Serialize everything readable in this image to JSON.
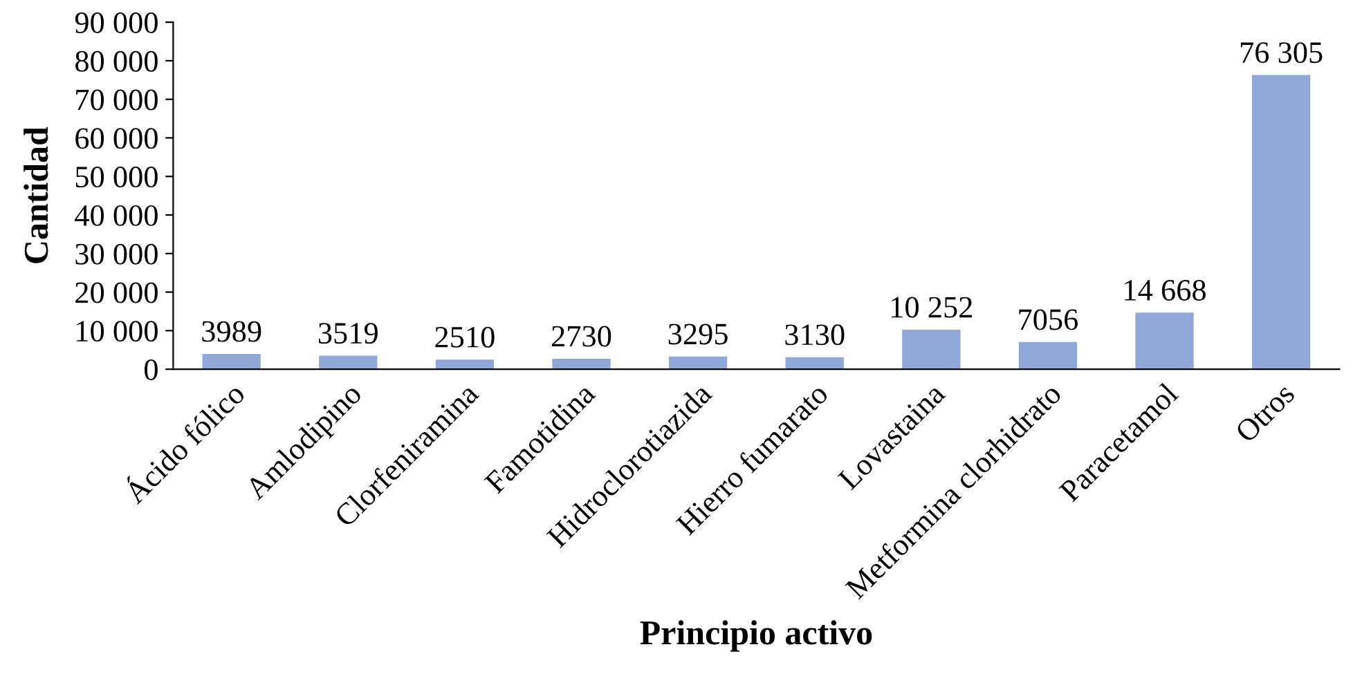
{
  "chart_data": {
    "type": "bar",
    "xlabel": "Principio activo",
    "ylabel": "Cantidad",
    "categories": [
      "Ácido fólico",
      "Amlodipino",
      "Clorfeniramina",
      "Famotidina",
      "Hidroclorotiazida",
      "Hierro fumarato",
      "Lovastaina",
      "Metformina clorhidrato",
      "Paracetamol",
      "Otros"
    ],
    "values": [
      3989,
      3519,
      2510,
      2730,
      3295,
      3130,
      10252,
      7056,
      14668,
      76305
    ],
    "value_labels": [
      "3989",
      "3519",
      "2510",
      "2730",
      "3295",
      "3130",
      "10 252",
      "7056",
      "14 668",
      "76 305"
    ],
    "color": "#8fa8d8",
    "ylim": [
      0,
      90000
    ],
    "yticks": [
      0,
      {
        "value": 10000,
        "label": "10 000"
      },
      {
        "value": 20000,
        "label": "20 000"
      },
      {
        "value": 30000,
        "label": "30 000"
      },
      {
        "value": 40000,
        "label": "40 000"
      },
      {
        "value": 50000,
        "label": "50 000"
      },
      {
        "value": 60000,
        "label": "60 000"
      },
      {
        "value": 70000,
        "label": "70 000"
      },
      {
        "value": 80000,
        "label": "80 000"
      },
      {
        "value": 90000,
        "label": "90 000"
      }
    ],
    "grid": false,
    "legend": false
  }
}
